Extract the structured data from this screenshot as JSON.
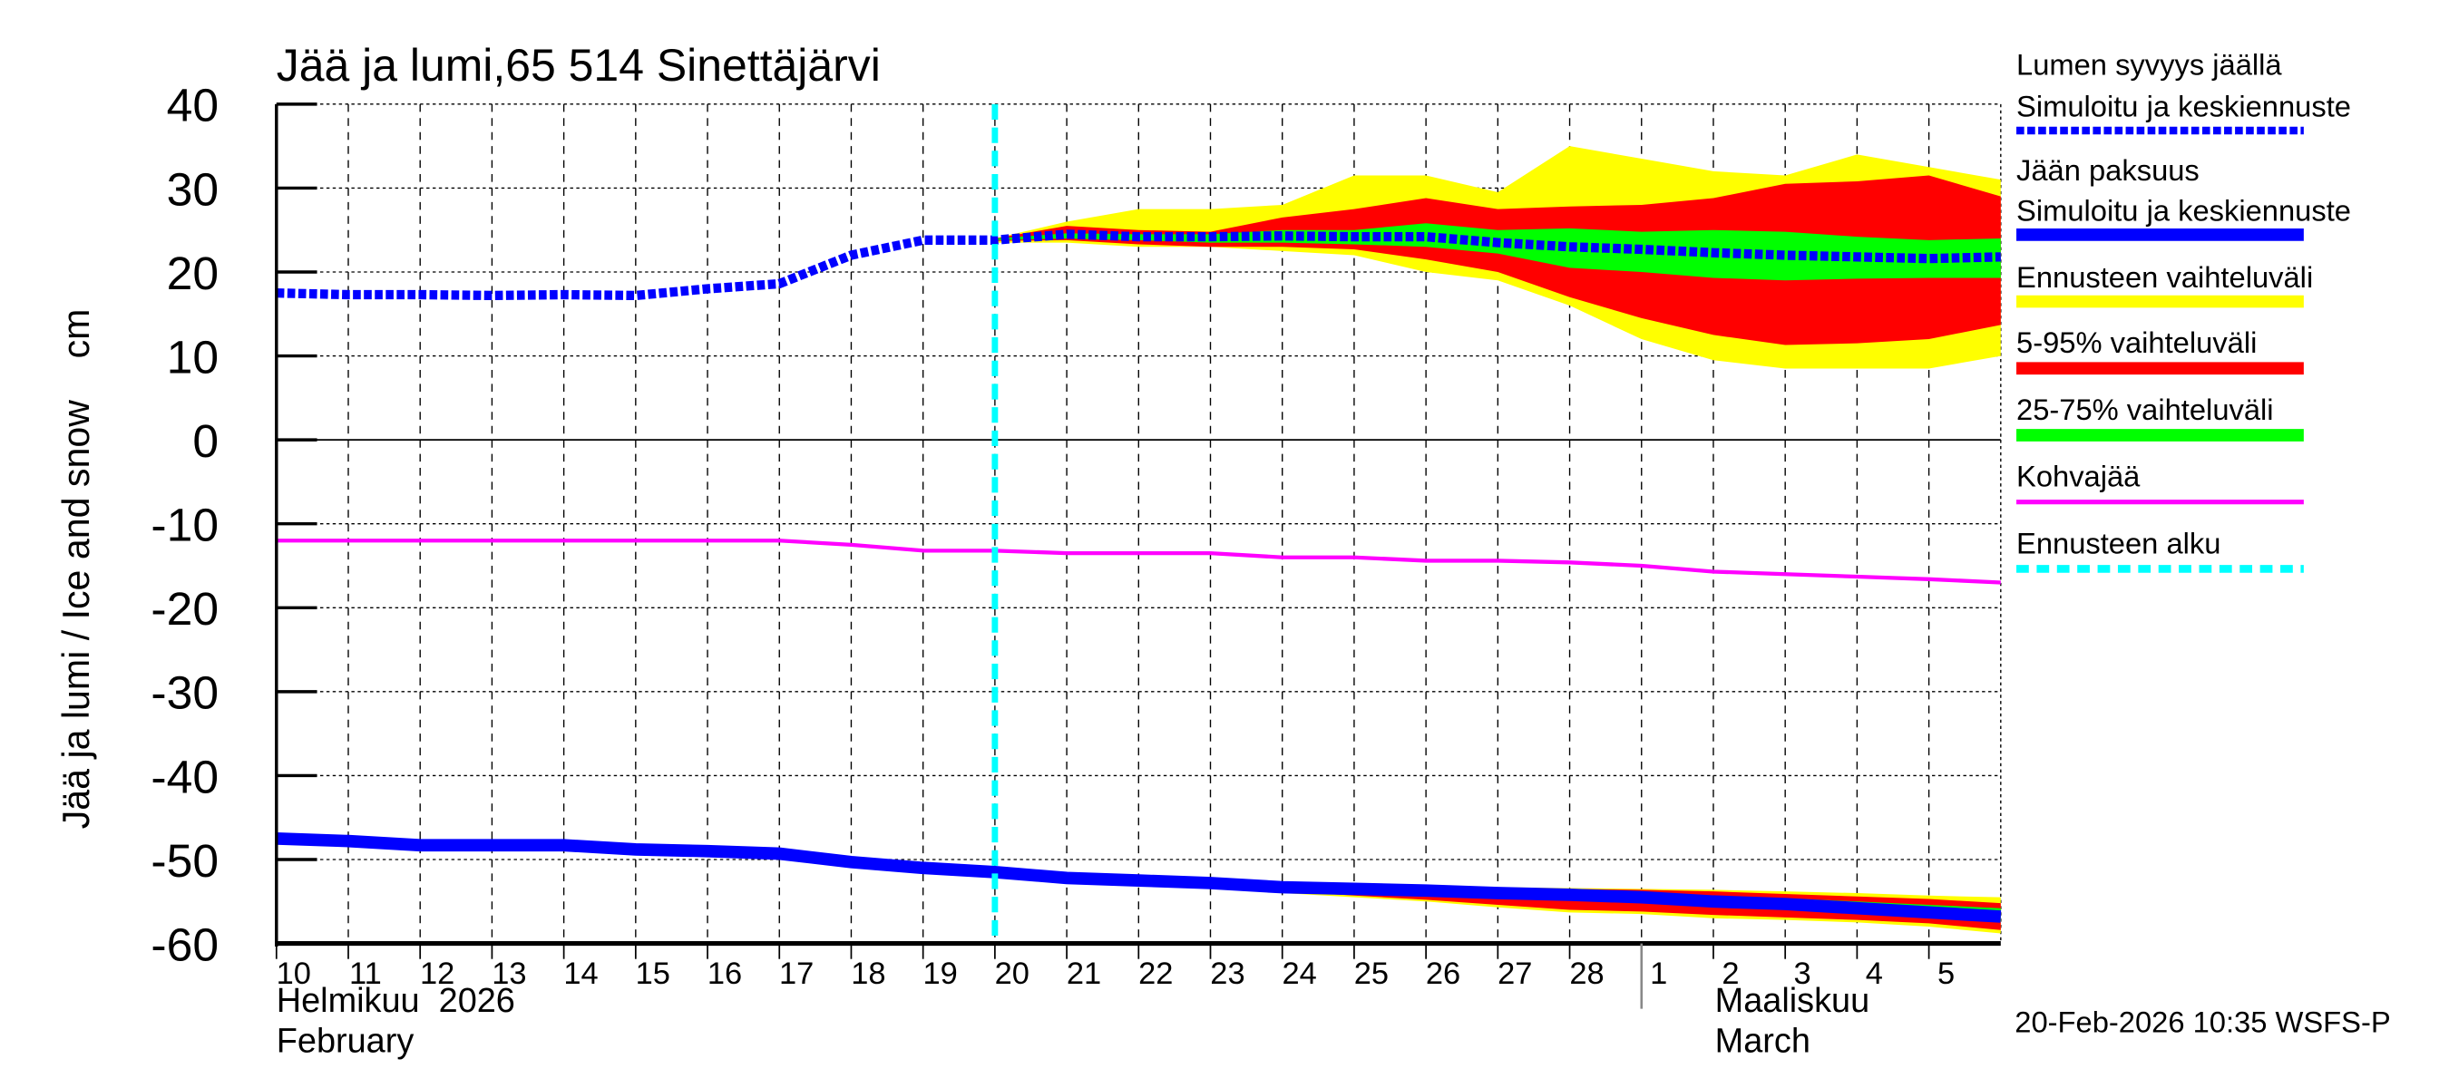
{
  "chart_data": {
    "type": "area",
    "title": "Jää ja lumi,65 514 Sinettäjärvi",
    "ylabel": "Jää ja lumi / Ice and snow    cm",
    "ylim": [
      -60,
      40
    ],
    "yticks": [
      40,
      30,
      20,
      10,
      0,
      -10,
      -20,
      -30,
      -40,
      -50,
      -60
    ],
    "grid": true,
    "legend_placement": "right",
    "x_dates": [
      "2026-02-10",
      "2026-02-11",
      "2026-02-12",
      "2026-02-13",
      "2026-02-14",
      "2026-02-15",
      "2026-02-16",
      "2026-02-17",
      "2026-02-18",
      "2026-02-19",
      "2026-02-20",
      "2026-02-21",
      "2026-02-22",
      "2026-02-23",
      "2026-02-24",
      "2026-02-25",
      "2026-02-26",
      "2026-02-27",
      "2026-02-28",
      "2026-03-01",
      "2026-03-02",
      "2026-03-03",
      "2026-03-04",
      "2026-03-05",
      "2026-03-06"
    ],
    "xtick_labels": [
      "10",
      "11",
      "12",
      "13",
      "14",
      "15",
      "16",
      "17",
      "18",
      "19",
      "20",
      "21",
      "22",
      "23",
      "24",
      "25",
      "26",
      "27",
      "28",
      "1",
      "2",
      "3",
      "4",
      "5"
    ],
    "month_labels": [
      {
        "fi": "Helmikuu  2026",
        "en": "February"
      },
      {
        "fi": "Maaliskuu",
        "en": "March"
      }
    ],
    "forecast_start": "2026-02-20",
    "series": {
      "snow_depth": {
        "name": "Lumen syvyys jäällä",
        "sub": "Simuloitu ja keskiennuste",
        "color": "#0000ff",
        "values": [
          17.5,
          17.3,
          17.3,
          17.2,
          17.3,
          17.2,
          18.0,
          18.6,
          22.0,
          23.8,
          23.8,
          24.5,
          24.2,
          24.2,
          24.3,
          24.2,
          24.2,
          23.5,
          23.0,
          22.7,
          22.3,
          22.0,
          21.8,
          21.6,
          21.8
        ]
      },
      "ice_thickness": {
        "name": "Jään paksuus",
        "sub": "Simuloitu ja keskiennuste",
        "color": "#0000ff",
        "values": [
          -47.5,
          -47.8,
          -48.3,
          -48.3,
          -48.3,
          -48.8,
          -49.0,
          -49.3,
          -50.3,
          -51.0,
          -51.5,
          -52.2,
          -52.5,
          -52.8,
          -53.3,
          -53.5,
          -53.7,
          -54.0,
          -54.2,
          -54.5,
          -55.0,
          -55.3,
          -55.8,
          -56.3,
          -56.8
        ]
      },
      "slush_ice": {
        "name": "Kohvajää",
        "color": "#ff00ff",
        "values": [
          -12,
          -12,
          -12,
          -12,
          -12,
          -12,
          -12,
          -12,
          -12.5,
          -13.2,
          -13.2,
          -13.5,
          -13.5,
          -13.5,
          -14.0,
          -14.0,
          -14.4,
          -14.4,
          -14.6,
          -15.0,
          -15.7,
          -16.0,
          -16.3,
          -16.6,
          -17.0
        ]
      }
    },
    "bands_start": "2026-02-20",
    "bands": {
      "snow": {
        "range": {
          "name": "Ennusteen vaihteluväli",
          "color": "#ffff00",
          "upper": [
            24,
            26,
            27.5,
            27.5,
            28,
            31.5,
            31.5,
            29.5,
            35,
            33.5,
            32,
            31.5,
            34,
            32.5,
            31
          ],
          "lower": [
            23.5,
            23.5,
            23,
            23,
            22.5,
            22,
            20,
            19,
            16,
            12,
            9.5,
            8.5,
            8.5,
            8.5,
            10
          ]
        },
        "p5_95": {
          "name": "5-95% vaihteluväli",
          "color": "#ff0000",
          "upper": [
            24,
            25.5,
            25,
            24.8,
            26.5,
            27.5,
            28.8,
            27.5,
            27.8,
            28,
            28.8,
            30.5,
            30.8,
            31.5,
            29
          ],
          "lower": [
            23.7,
            23.8,
            23.3,
            23,
            23,
            22.7,
            21.5,
            20,
            17,
            14.5,
            12.5,
            11.3,
            11.5,
            12,
            13.7
          ]
        },
        "p25_75": {
          "name": "25-75% vaihteluväli",
          "color": "#00ff00",
          "upper": [
            24,
            24.6,
            24.5,
            24.5,
            25,
            25,
            25.8,
            25,
            25.2,
            24.8,
            25,
            24.8,
            24.2,
            23.8,
            24
          ],
          "lower": [
            23.8,
            24,
            23.8,
            23.5,
            23.5,
            23.3,
            23,
            22.2,
            20.5,
            20,
            19.3,
            19,
            19.2,
            19.3,
            19.3
          ]
        }
      },
      "ice": {
        "range": {
          "upper": [
            -51.3,
            -52,
            -52.3,
            -52.6,
            -52.9,
            -53.1,
            -53.3,
            -53.3,
            -53.4,
            -53.5,
            -53.6,
            -53.8,
            -54.0,
            -54.3,
            -54.5
          ],
          "lower": [
            -51.6,
            -52.3,
            -52.7,
            -53.1,
            -54.0,
            -54.5,
            -55.0,
            -55.7,
            -56.3,
            -56.5,
            -57.0,
            -57.2,
            -57.5,
            -58.0,
            -58.8
          ]
        },
        "p5_95": {
          "upper": [
            -51.4,
            -52.1,
            -52.4,
            -52.7,
            -53.0,
            -53.2,
            -53.4,
            -53.4,
            -53.5,
            -53.6,
            -53.8,
            -54.1,
            -54.4,
            -54.7,
            -55.2
          ],
          "lower": [
            -51.6,
            -52.3,
            -52.6,
            -53.0,
            -53.8,
            -54.3,
            -54.8,
            -55.4,
            -56.0,
            -56.2,
            -56.6,
            -56.9,
            -57.2,
            -57.6,
            -58.4
          ]
        },
        "p25_75": {
          "upper": [
            -51.4,
            -52.1,
            -52.4,
            -52.7,
            -53.1,
            -53.3,
            -53.5,
            -53.7,
            -53.8,
            -54.0,
            -54.3,
            -54.6,
            -55.0,
            -55.4,
            -55.8
          ],
          "lower": [
            -51.6,
            -52.3,
            -52.6,
            -52.9,
            -53.5,
            -53.7,
            -54.0,
            -54.4,
            -54.7,
            -55.0,
            -55.5,
            -55.9,
            -56.3,
            -56.8,
            -57.4
          ]
        }
      }
    },
    "legend": [
      {
        "label1": "Lumen syvyys jäällä",
        "label2": "Simuloitu ja keskiennuste",
        "color": "#0000ff",
        "style": "dotted"
      },
      {
        "label1": "Jään paksuus",
        "label2": "Simuloitu ja keskiennuste",
        "color": "#0000ff",
        "style": "solid"
      },
      {
        "label1": "Ennusteen vaihteluväli",
        "color": "#ffff00",
        "style": "solid"
      },
      {
        "label1": "5-95% vaihteluväli",
        "color": "#ff0000",
        "style": "solid"
      },
      {
        "label1": "25-75% vaihteluväli",
        "color": "#00ff00",
        "style": "solid"
      },
      {
        "label1": "Kohvajää",
        "color": "#ff00ff",
        "style": "thin"
      },
      {
        "label1": "Ennusteen alku",
        "color": "#00ffff",
        "style": "dotted"
      }
    ],
    "footer": "20-Feb-2026 10:35 WSFS-P"
  }
}
